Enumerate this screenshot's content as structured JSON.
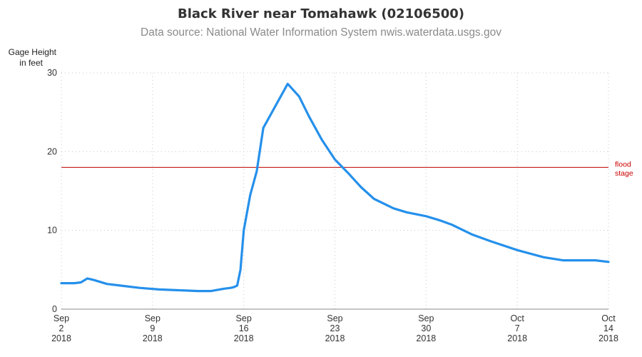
{
  "chart_data": {
    "type": "line",
    "title": "Black River near Tomahawk (02106500)",
    "subtitle": "Data source: National Water Information System nwis.waterdata.usgs.gov",
    "ylabel": [
      "Gage Height",
      "in feet"
    ],
    "ylim": [
      0,
      30
    ],
    "yticks": [
      0,
      10,
      20,
      30
    ],
    "xlim": [
      "2018-09-02",
      "2018-10-14"
    ],
    "xticks": [
      {
        "date": "2018-09-02",
        "lines": [
          "Sep",
          "2",
          "2018"
        ]
      },
      {
        "date": "2018-09-09",
        "lines": [
          "Sep",
          "9",
          "2018"
        ]
      },
      {
        "date": "2018-09-16",
        "lines": [
          "Sep",
          "16",
          "2018"
        ]
      },
      {
        "date": "2018-09-23",
        "lines": [
          "Sep",
          "23",
          "2018"
        ]
      },
      {
        "date": "2018-09-30",
        "lines": [
          "Sep",
          "30",
          "2018"
        ]
      },
      {
        "date": "2018-10-07",
        "lines": [
          "Oct",
          "7",
          "2018"
        ]
      },
      {
        "date": "2018-10-14",
        "lines": [
          "Oct",
          "14",
          "2018"
        ]
      }
    ],
    "grid": true,
    "series_color": "#2590eb",
    "reference_line": {
      "value": 18,
      "label": [
        "flood",
        "stage"
      ],
      "color": "#c00000"
    },
    "x": [
      "2018-09-02 00:00",
      "2018-09-03 00:00",
      "2018-09-03 12:00",
      "2018-09-04 00:00",
      "2018-09-04 12:00",
      "2018-09-05 12:00",
      "2018-09-06 12:00",
      "2018-09-08 00:00",
      "2018-09-09 12:00",
      "2018-09-11 00:00",
      "2018-09-12 12:00",
      "2018-09-13 12:00",
      "2018-09-14 12:00",
      "2018-09-15 00:00",
      "2018-09-15 06:00",
      "2018-09-15 12:00",
      "2018-09-15 18:00",
      "2018-09-16 00:00",
      "2018-09-16 12:00",
      "2018-09-17 00:00",
      "2018-09-17 12:00",
      "2018-09-19 09:00",
      "2018-09-20 06:00",
      "2018-09-21 00:00",
      "2018-09-22 00:00",
      "2018-09-23 00:00",
      "2018-09-24 00:00",
      "2018-09-25 00:00",
      "2018-09-26 00:00",
      "2018-09-27 12:00",
      "2018-09-28 12:00",
      "2018-09-30 00:00",
      "2018-10-01 00:00",
      "2018-10-02 00:00",
      "2018-10-03 12:00",
      "2018-10-05 00:00",
      "2018-10-07 00:00",
      "2018-10-09 00:00",
      "2018-10-10 12:00",
      "2018-10-12 00:00",
      "2018-10-13 00:00",
      "2018-10-14 00:00"
    ],
    "y": [
      3.3,
      3.3,
      3.4,
      3.9,
      3.7,
      3.2,
      3.0,
      2.7,
      2.5,
      2.4,
      2.3,
      2.3,
      2.6,
      2.7,
      2.8,
      3.0,
      5.0,
      10.0,
      14.5,
      17.5,
      23.0,
      28.6,
      27.0,
      24.5,
      21.5,
      19.0,
      17.3,
      15.5,
      14.0,
      12.8,
      12.3,
      11.8,
      11.3,
      10.7,
      9.5,
      8.6,
      7.5,
      6.6,
      6.2,
      6.2,
      6.2,
      6.0
    ]
  }
}
